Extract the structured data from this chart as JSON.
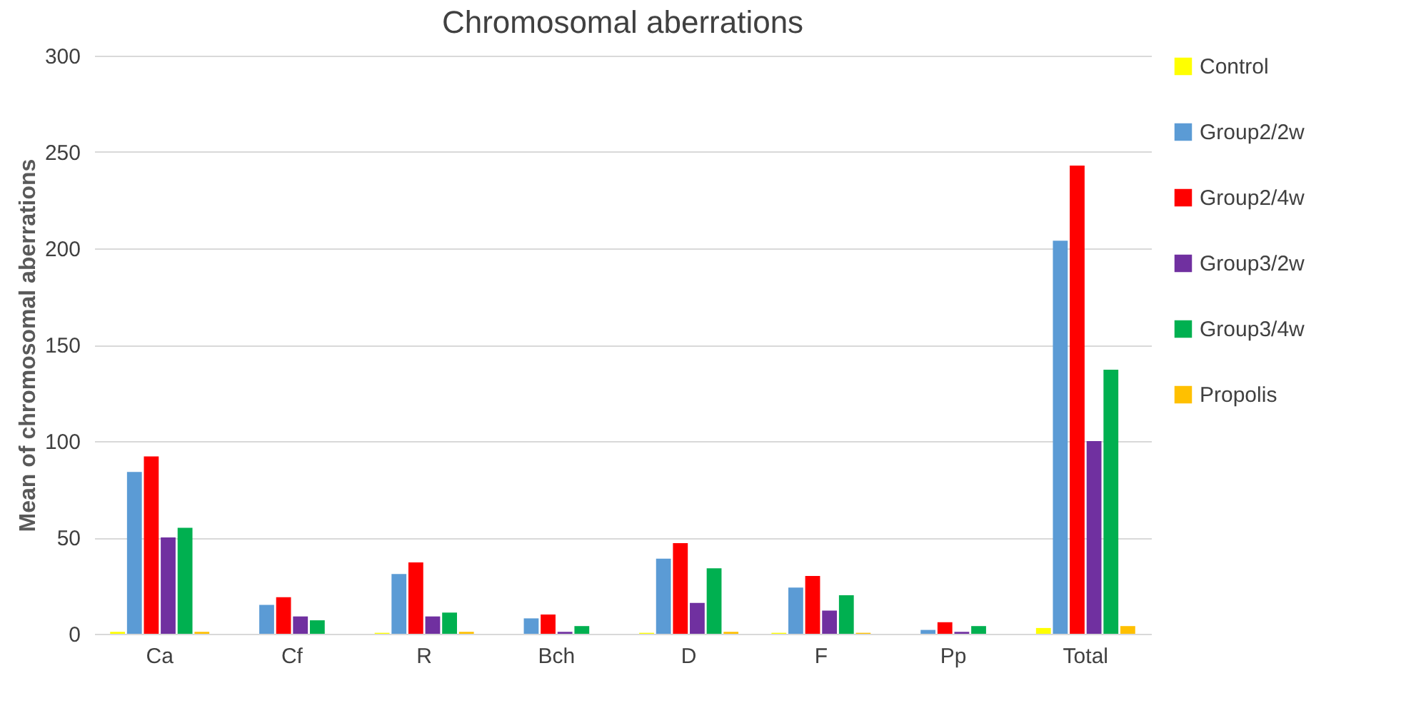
{
  "chart_data": {
    "type": "bar",
    "title": "Chromosomal aberrations",
    "ylabel": "Mean of chromosomal aberrations",
    "categories": [
      "Ca",
      "Cf",
      "R",
      "Bch",
      "D",
      "F",
      "Pp",
      "Total"
    ],
    "series": [
      {
        "name": "Control",
        "color": "#ffff00",
        "values": [
          1,
          0,
          0.5,
          0,
          0.5,
          0.5,
          0,
          3
        ]
      },
      {
        "name": "Group2/2w",
        "color": "#5b9bd5",
        "values": [
          84,
          15,
          31,
          8,
          39,
          24,
          2,
          204
        ]
      },
      {
        "name": "Group2/4w",
        "color": "#ff0000",
        "values": [
          92,
          19,
          37,
          10,
          47,
          30,
          6,
          243
        ]
      },
      {
        "name": "Group3/2w",
        "color": "#7030a0",
        "values": [
          50,
          9,
          9,
          1,
          16,
          12,
          1,
          100
        ]
      },
      {
        "name": "Group3/4w",
        "color": "#00b050",
        "values": [
          55,
          7,
          11,
          4,
          34,
          20,
          4,
          137
        ]
      },
      {
        "name": "Propolis",
        "color": "#ffc000",
        "values": [
          1,
          0,
          1,
          0,
          1,
          0.5,
          0,
          4
        ]
      }
    ],
    "ylim": [
      0,
      300
    ],
    "yticks": [
      0,
      50,
      100,
      150,
      200,
      250,
      300
    ],
    "grid": "y",
    "legend": "right"
  }
}
